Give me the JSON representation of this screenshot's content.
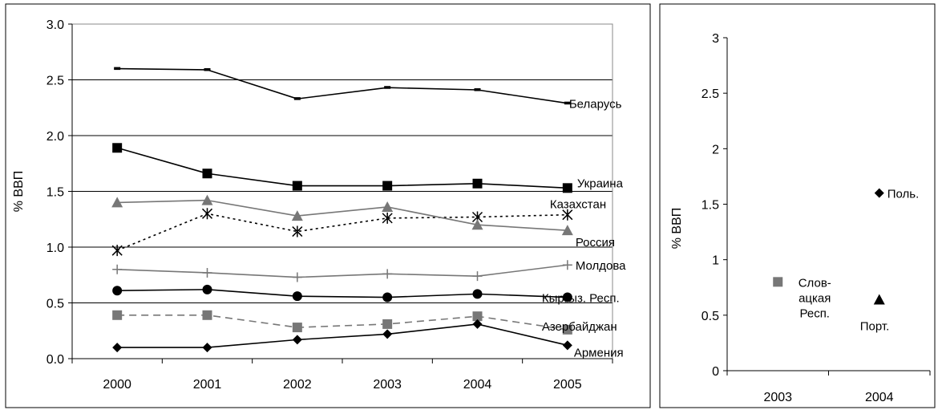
{
  "chart_data": [
    {
      "type": "line",
      "title": "",
      "xlabel": "",
      "ylabel": "% ВВП",
      "ylim": [
        0,
        3
      ],
      "yticks": [
        "0.0",
        "0.5",
        "1.0",
        "1.5",
        "2.0",
        "2.5",
        "3.0"
      ],
      "grid": "horizontal",
      "categories": [
        "2000",
        "2001",
        "2002",
        "2003",
        "2004",
        "2005"
      ],
      "series": [
        {
          "name": "Беларусь",
          "marker": "dash",
          "line": "solid",
          "color": "#000000",
          "values": [
            2.6,
            2.59,
            2.33,
            2.43,
            2.41,
            2.29
          ]
        },
        {
          "name": "Украина",
          "marker": "square",
          "line": "solid",
          "color": "#000000",
          "values": [
            1.89,
            1.66,
            1.55,
            1.55,
            1.57,
            1.53
          ]
        },
        {
          "name": "Казахстан",
          "marker": "x-star",
          "line": "dotted",
          "color": "#000000",
          "values": [
            0.97,
            1.3,
            1.14,
            1.26,
            1.27,
            1.29
          ]
        },
        {
          "name": "Россия",
          "marker": "triangle",
          "line": "solid",
          "color": "#777777",
          "values": [
            1.4,
            1.42,
            1.28,
            1.36,
            1.2,
            1.15
          ]
        },
        {
          "name": "Молдова",
          "marker": "plus",
          "line": "solid",
          "color": "#777777",
          "values": [
            0.8,
            0.77,
            0.73,
            0.76,
            0.74,
            0.84
          ]
        },
        {
          "name": "Кыргыз. Респ.",
          "marker": "circle",
          "line": "solid",
          "color": "#000000",
          "values": [
            0.61,
            0.62,
            0.56,
            0.55,
            0.58,
            0.55
          ]
        },
        {
          "name": "Азербайджан",
          "marker": "square",
          "line": "dashed",
          "color": "#777777",
          "values": [
            0.39,
            0.39,
            0.28,
            0.31,
            0.38,
            0.26
          ]
        },
        {
          "name": "Армения",
          "marker": "diamond",
          "line": "solid",
          "color": "#000000",
          "values": [
            0.1,
            0.1,
            0.17,
            0.22,
            0.31,
            0.12
          ]
        }
      ]
    },
    {
      "type": "scatter",
      "title": "",
      "xlabel": "",
      "ylabel": "% ВВП",
      "ylim": [
        0,
        3
      ],
      "yticks": [
        "0",
        "0.5",
        "1",
        "1.5",
        "2",
        "2.5",
        "3"
      ],
      "grid": "none",
      "categories": [
        "2003",
        "2004"
      ],
      "points": [
        {
          "label": "Поль.",
          "x": "2004",
          "y": 1.6,
          "marker": "diamond",
          "color": "#000000"
        },
        {
          "label": "Слов-\nацкая\nРесп.",
          "x": "2003",
          "y": 0.8,
          "marker": "square",
          "color": "#777777"
        },
        {
          "label": "Порт.",
          "x": "2004",
          "y": 0.64,
          "marker": "triangle",
          "color": "#000000"
        }
      ]
    }
  ]
}
